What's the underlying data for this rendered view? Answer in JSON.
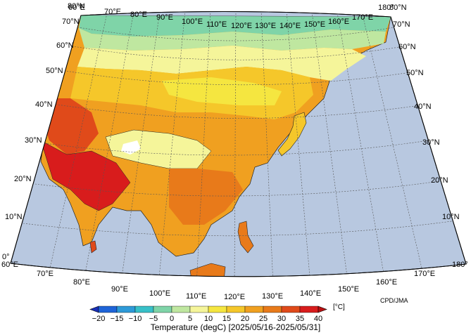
{
  "map": {
    "longitude_labels": [
      "60°E",
      "70°E",
      "80°E",
      "90°E",
      "100°E",
      "110°E",
      "120°E",
      "130°E",
      "140°E",
      "150°E",
      "160°E",
      "170°E",
      "180°"
    ],
    "latitude_labels": [
      "0°",
      "10°N",
      "20°N",
      "30°N",
      "40°N",
      "50°N",
      "60°N",
      "70°N",
      "80°N"
    ],
    "ocean_color": "#b8c8e0",
    "land_outline_color": "#222222"
  },
  "legend": {
    "ticks": [
      "−20",
      "−15",
      "−10",
      "−5",
      "0",
      "5",
      "10",
      "15",
      "20",
      "25",
      "30",
      "35",
      "40"
    ],
    "unit": "[°C]",
    "colors": [
      "#1a2fb8",
      "#1e64d8",
      "#2e9ad8",
      "#38c0c8",
      "#7fd4a8",
      "#bfe7a0",
      "#f5f59a",
      "#f5e640",
      "#f5c72a",
      "#f0a020",
      "#e87a1a",
      "#e04a1a",
      "#d81c1c",
      "#b80f10"
    ]
  },
  "title": "Temperature (degC) [2025/05/16-2025/05/31]",
  "credit": "CPD/JMA"
}
